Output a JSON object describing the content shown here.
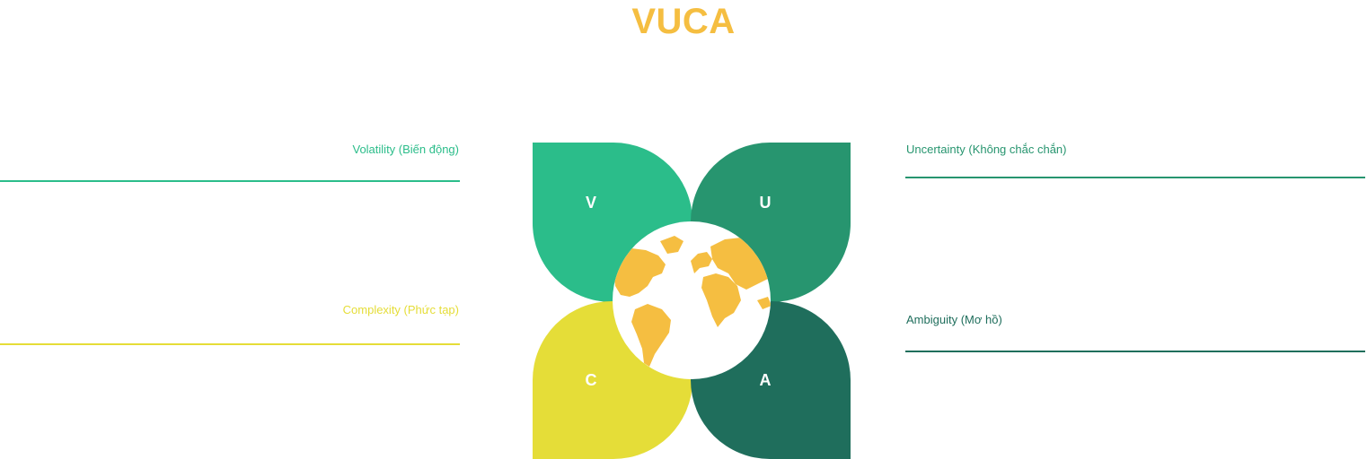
{
  "title": "VUCA",
  "colors": {
    "title": "#f5be41",
    "volatility": "#2bbd8a",
    "uncertainty": "#27956f",
    "complexity": "#e5dd38",
    "ambiguity": "#1f6e5c",
    "globe_land": "#f5be41",
    "globe_sea": "#ffffff"
  },
  "items": {
    "volatility": {
      "letter": "V",
      "label": "Volatility (Biến động)"
    },
    "uncertainty": {
      "letter": "U",
      "label": "Uncertainty (Không chắc chắn)"
    },
    "complexity": {
      "letter": "C",
      "label": "Complexity (Phức tạp)"
    },
    "ambiguity": {
      "letter": "A",
      "label": "Ambiguity (Mơ hồ)"
    }
  },
  "center_icon": "globe-icon"
}
